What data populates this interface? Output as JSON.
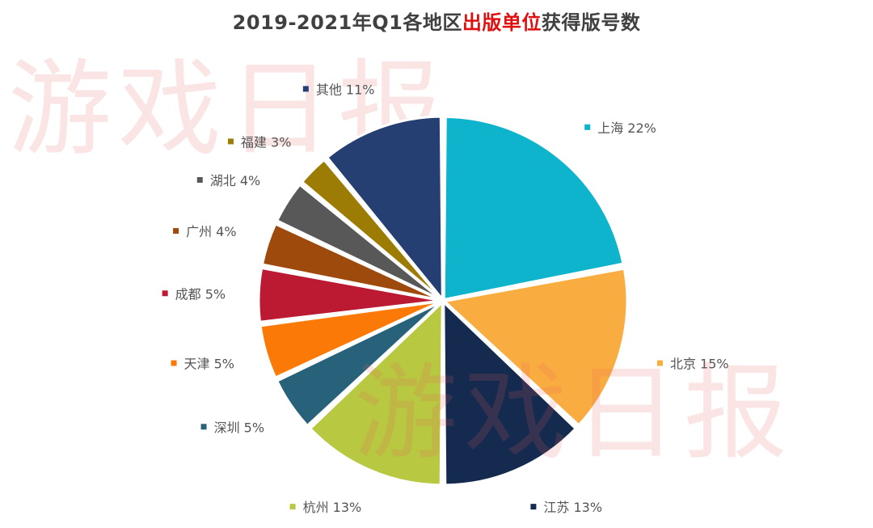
{
  "title": {
    "prefix": "2019-2021年Q1各地区",
    "highlight": "出版单位",
    "suffix": "获得版号数",
    "highlight_color": "#e01010"
  },
  "watermark": {
    "text_1": "游戏日报",
    "text_2": "游戏日报"
  },
  "chart_data": {
    "type": "pie",
    "title": "2019-2021年Q1各地区出版单位获得版号数",
    "unit": "%",
    "start": "12 o'clock, clockwise",
    "slices": [
      {
        "label": "上海",
        "value": 22,
        "color": "#0eb4cc"
      },
      {
        "label": "北京",
        "value": 15,
        "color": "#f9ac3f"
      },
      {
        "label": "江苏",
        "value": 13,
        "color": "#152a4f"
      },
      {
        "label": "杭州",
        "value": 13,
        "color": "#b9c841"
      },
      {
        "label": "深圳",
        "value": 5,
        "color": "#27627a"
      },
      {
        "label": "天津",
        "value": 5,
        "color": "#fb7a07"
      },
      {
        "label": "成都",
        "value": 5,
        "color": "#bc1932"
      },
      {
        "label": "广州",
        "value": 4,
        "color": "#9e4a0d"
      },
      {
        "label": "湖北",
        "value": 4,
        "color": "#585858"
      },
      {
        "label": "福建",
        "value": 3,
        "color": "#9c7c05"
      },
      {
        "label": "其他",
        "value": 11,
        "color": "#263f72"
      }
    ]
  }
}
